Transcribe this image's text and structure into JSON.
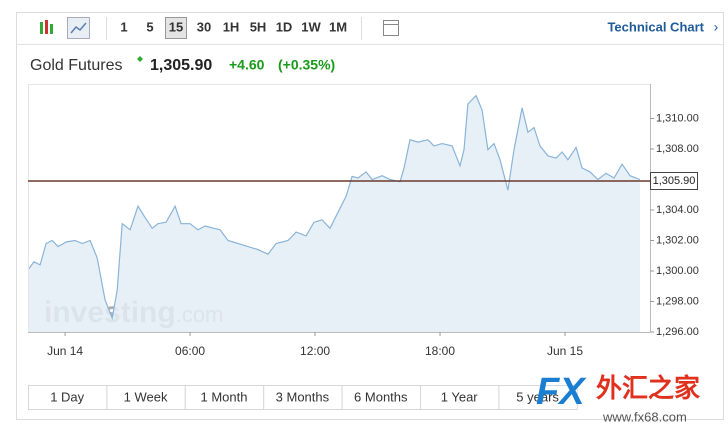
{
  "toolbar": {
    "intervals": [
      "1",
      "5",
      "15",
      "30",
      "1H",
      "5H",
      "1D",
      "1W",
      "1M"
    ],
    "selected_interval": 2,
    "link": "Technical Chart"
  },
  "quote": {
    "name": "Gold Futures",
    "price": "1,305.90",
    "change": "+4.60",
    "change_percent": "(+0.35%)"
  },
  "chart_data": {
    "type": "area",
    "x": [
      -1.78,
      -1.49,
      -1.2,
      -0.91,
      -0.62,
      -0.34,
      0.05,
      0.48,
      0.82,
      1.2,
      1.54,
      1.92,
      2.26,
      2.5,
      2.74,
      3.12,
      3.5,
      3.84,
      4.18,
      4.46,
      4.85,
      5.28,
      5.57,
      6.0,
      6.38,
      6.72,
      7.15,
      7.44,
      7.82,
      8.3,
      8.78,
      9.26,
      9.74,
      10.13,
      10.7,
      11.09,
      11.57,
      11.95,
      12.34,
      12.72,
      13.1,
      13.49,
      13.78,
      14.06,
      14.45,
      14.74,
      15.22,
      15.6,
      16.08,
      16.27,
      16.56,
      16.94,
      17.42,
      17.71,
      18.1,
      18.58,
      18.96,
      19.15,
      19.34,
      19.73,
      20.02,
      20.3,
      20.59,
      20.88,
      21.26,
      21.55,
      21.94,
      22.22,
      22.51,
      22.8,
      23.18,
      23.57,
      23.86,
      24.14,
      24.53,
      24.82,
      25.2,
      25.58,
      25.97,
      26.35,
      26.74,
      27.12,
      27.6
    ],
    "values": [
      1300.07,
      1300.6,
      1300.4,
      1301.8,
      1302.0,
      1301.6,
      1301.9,
      1302.0,
      1301.8,
      1302.0,
      1300.85,
      1298.1,
      1296.9,
      1298.75,
      1303.1,
      1302.7,
      1304.25,
      1303.5,
      1302.8,
      1303.1,
      1303.2,
      1304.25,
      1303.1,
      1303.1,
      1302.7,
      1302.95,
      1302.8,
      1302.7,
      1302.0,
      1301.8,
      1301.6,
      1301.4,
      1301.1,
      1301.8,
      1302.0,
      1302.55,
      1302.3,
      1303.2,
      1303.35,
      1302.8,
      1303.85,
      1304.9,
      1306.2,
      1306.1,
      1306.5,
      1306.0,
      1306.25,
      1306.0,
      1305.85,
      1306.75,
      1308.6,
      1308.45,
      1308.6,
      1308.2,
      1308.35,
      1308.2,
      1306.9,
      1307.95,
      1310.95,
      1311.5,
      1310.55,
      1307.95,
      1308.35,
      1307.3,
      1305.3,
      1307.95,
      1310.7,
      1309.1,
      1309.4,
      1308.2,
      1307.55,
      1307.4,
      1307.8,
      1307.3,
      1308.1,
      1306.75,
      1306.5,
      1306.0,
      1306.4,
      1306.1,
      1307.0,
      1306.25,
      1306.0
    ],
    "color": "#8ab4d8",
    "fill": "#e4edf6",
    "xlim": [
      -1.78,
      28.08
    ],
    "xticks": [
      {
        "value": 0,
        "label": "Jun 14"
      },
      {
        "value": 6,
        "label": "06:00"
      },
      {
        "value": 12,
        "label": "12:00"
      },
      {
        "value": 18,
        "label": "18:00"
      },
      {
        "value": 24,
        "label": "Jun 15"
      }
    ],
    "ylim": [
      1296,
      1312.26
    ],
    "yticks": [
      {
        "value": 1296,
        "label": "1,296.00"
      },
      {
        "value": 1298,
        "label": "1,298.00"
      },
      {
        "value": 1300,
        "label": "1,300.00"
      },
      {
        "value": 1302,
        "label": "1,302.00"
      },
      {
        "value": 1304,
        "label": "1,304.00"
      },
      {
        "value": 1308,
        "label": "1,308.00"
      },
      {
        "value": 1310,
        "label": "1,310.00"
      }
    ],
    "last_price": 1305.9,
    "last_price_label": "1,305.90",
    "last_price_color": "#6b3a2e",
    "watermark": "investing",
    "watermark_suffix": ".com"
  },
  "range_buttons": [
    "1 Day",
    "1 Week",
    "1 Month",
    "3 Months",
    "6 Months",
    "1 Year",
    "5 years"
  ],
  "site_logo": {
    "fx": "FX",
    "cn": "外汇之家",
    "url": "www.fx68.com"
  }
}
